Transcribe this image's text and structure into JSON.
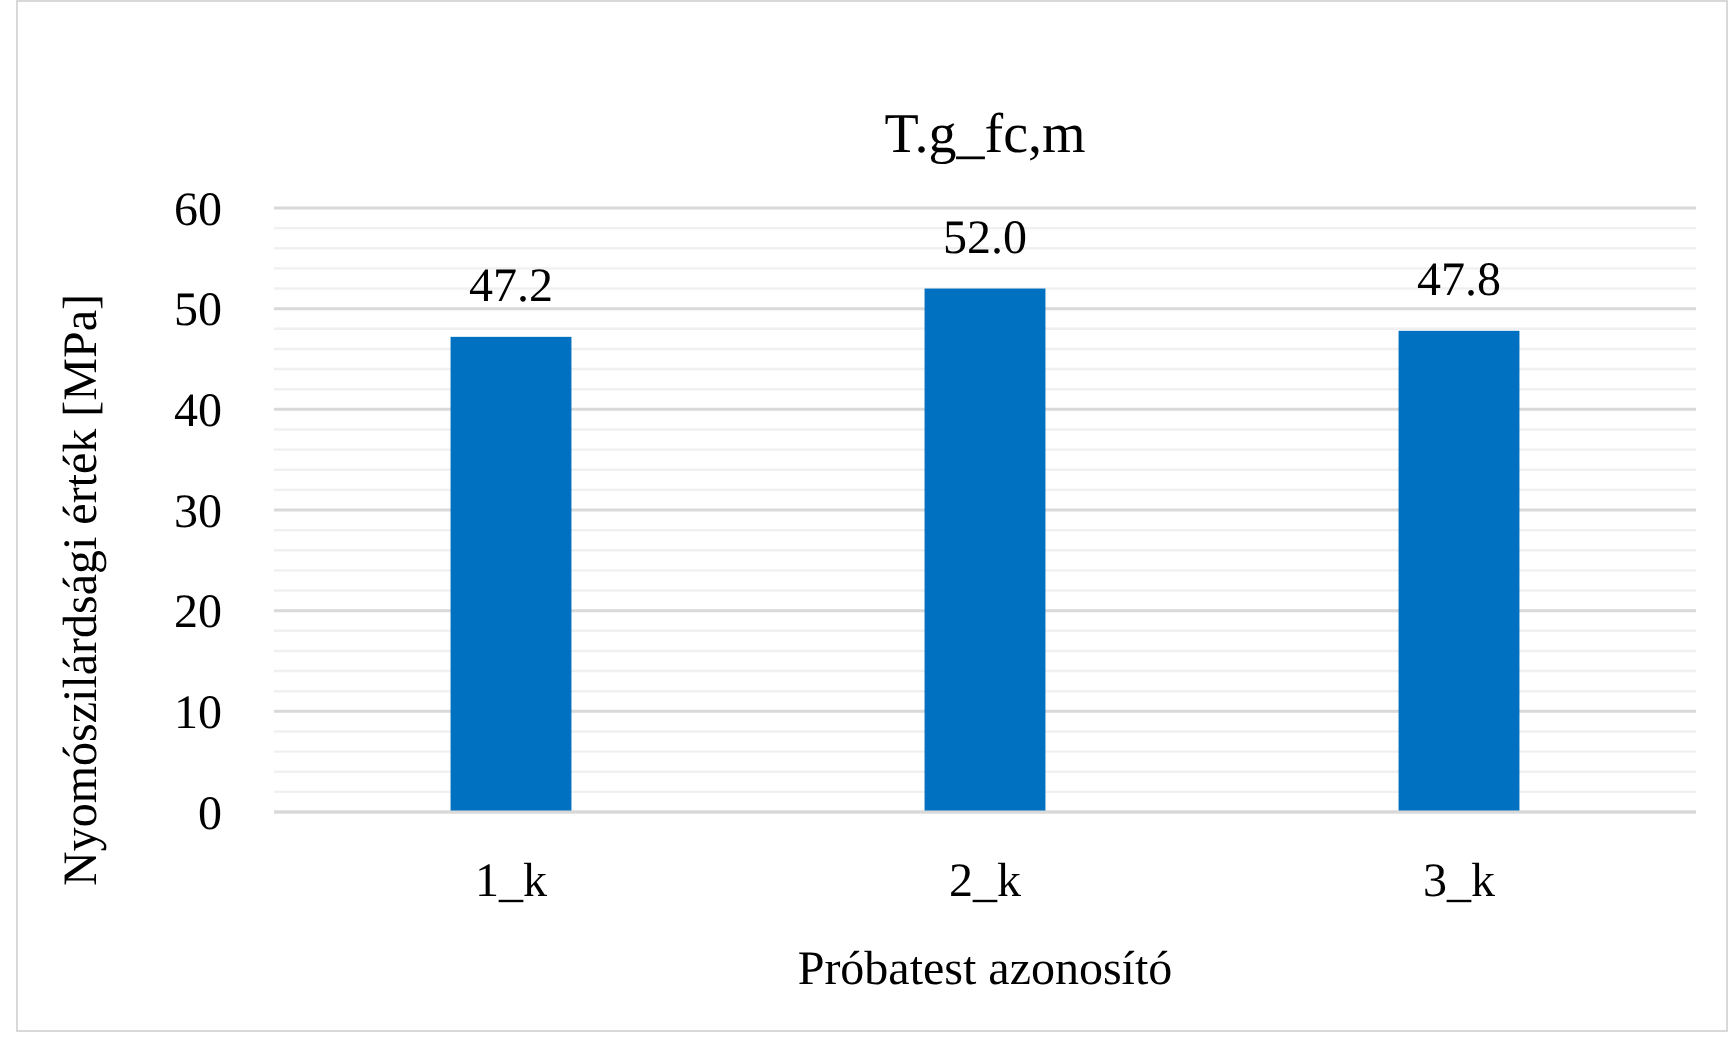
{
  "chart_data": {
    "type": "bar",
    "title": "T.g_fc,m",
    "xlabel": "Próbatest azonosító",
    "ylabel": "Nyomószilárdsági érték [MPa]",
    "categories": [
      "1_k",
      "2_k",
      "3_k"
    ],
    "values": [
      47.2,
      52.0,
      47.8
    ],
    "color": "#0070c0",
    "value_labels": [
      "47.2",
      "52.0",
      "47.8"
    ],
    "ylim": [
      0,
      60
    ],
    "yticks": [
      0,
      {
        "value": 2,
        "label": null
      },
      {
        "value": 4,
        "label": null
      },
      {
        "value": 6,
        "label": null
      },
      {
        "value": 8,
        "label": null
      },
      10,
      {
        "value": 12,
        "label": null
      },
      {
        "value": 14,
        "label": null
      },
      {
        "value": 16,
        "label": null
      },
      {
        "value": 18,
        "label": null
      },
      20,
      {
        "value": 22,
        "label": null
      },
      {
        "value": 24,
        "label": null
      },
      {
        "value": 26,
        "label": null
      },
      {
        "value": 28,
        "label": null
      },
      30,
      {
        "value": 32,
        "label": null
      },
      {
        "value": 34,
        "label": null
      },
      {
        "value": 36,
        "label": null
      },
      {
        "value": 38,
        "label": null
      },
      40,
      {
        "value": 42,
        "label": null
      },
      {
        "value": 44,
        "label": null
      },
      {
        "value": 46,
        "label": null
      },
      {
        "value": 48,
        "label": null
      },
      50,
      {
        "value": 52,
        "label": null
      },
      {
        "value": 54,
        "label": null
      },
      {
        "value": 56,
        "label": null
      },
      {
        "value": 58,
        "label": null
      },
      60
    ],
    "grid": "y"
  }
}
